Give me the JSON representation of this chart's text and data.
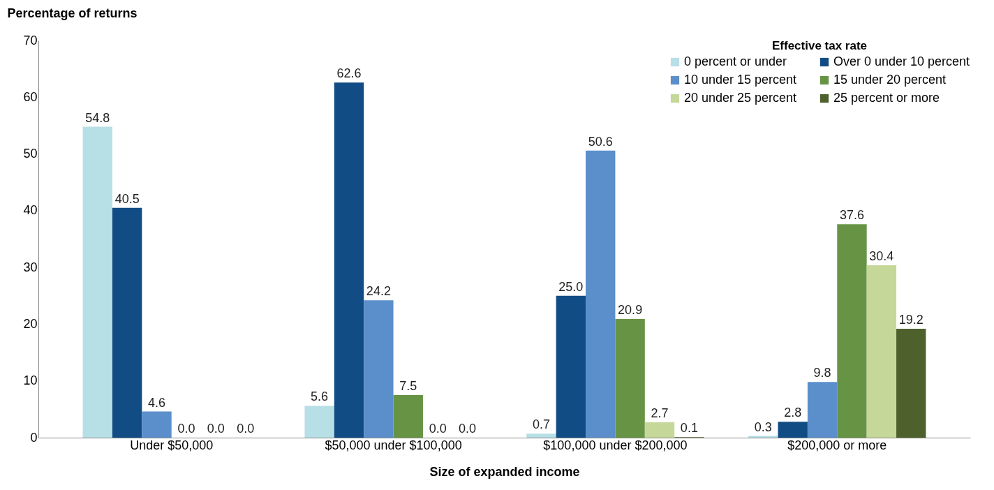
{
  "chart_data": {
    "type": "bar",
    "xlabel": "Size of expanded income",
    "ylabel": "Percentage of returns",
    "legend_title": "Effective tax rate",
    "categories": [
      "Under $50,000",
      "$50,000 under $100,000",
      "$100,000 under $200,000",
      "$200,000 or more"
    ],
    "series": [
      {
        "name": "0 percent or under",
        "color": "#b7dfe6",
        "values": [
          54.8,
          5.6,
          0.7,
          0.3
        ]
      },
      {
        "name": "Over 0 under 10 percent",
        "color": "#114d84",
        "values": [
          40.5,
          62.6,
          25.0,
          2.8
        ]
      },
      {
        "name": "10 under 15 percent",
        "color": "#5a8fcb",
        "values": [
          4.6,
          24.2,
          50.6,
          9.8
        ]
      },
      {
        "name": "15 under 20 percent",
        "color": "#679444",
        "values": [
          0.0,
          7.5,
          20.9,
          37.6
        ]
      },
      {
        "name": "20 under 25 percent",
        "color": "#c5d89a",
        "values": [
          0.0,
          0.0,
          2.7,
          30.4
        ]
      },
      {
        "name": "25 percent or more",
        "color": "#4e612d",
        "values": [
          0.0,
          0.0,
          0.1,
          19.2
        ]
      }
    ],
    "value_labels": [
      [
        "54.8",
        "5.6",
        "0.7",
        "0.3"
      ],
      [
        "40.5",
        "62.6",
        "25.0",
        "2.8"
      ],
      [
        "4.6",
        "24.2",
        "50.6",
        "9.8"
      ],
      [
        "0.0",
        "7.5",
        "20.9",
        "37.6"
      ],
      [
        "0.0",
        "0.0",
        "2.7",
        "30.4"
      ],
      [
        "0.0",
        "0.0",
        "0.1",
        "19.2"
      ]
    ],
    "ylim": [
      0,
      70
    ],
    "yticks": [
      0,
      10,
      20,
      30,
      40,
      50,
      60,
      70
    ],
    "grid": false,
    "legend": "top right"
  }
}
